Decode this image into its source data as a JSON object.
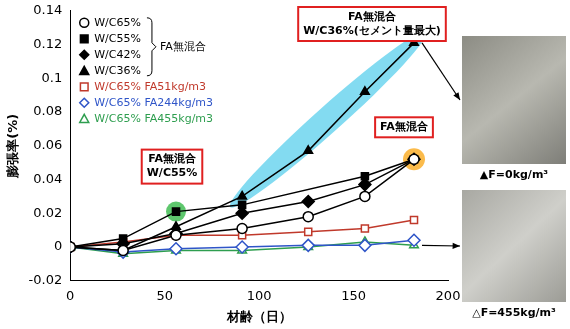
{
  "chart_data": {
    "type": "line",
    "x_label": "材齢（日）",
    "y_label": "膨張率(%)",
    "x": [
      0,
      28,
      56,
      91,
      126,
      156,
      182
    ],
    "series": [
      {
        "name": "W/C65%",
        "color": "#000000",
        "marker": "circle_open",
        "values": [
          0,
          -0.002,
          0.007,
          0.011,
          0.018,
          0.03,
          0.052
        ]
      },
      {
        "name": "W/C55%",
        "color": "#000000",
        "marker": "square",
        "values": [
          0,
          0.005,
          0.021,
          0.025,
          null,
          0.042,
          0.052
        ]
      },
      {
        "name": "W/C42%",
        "color": "#000000",
        "marker": "diamond",
        "values": [
          0,
          0.002,
          0.008,
          0.02,
          0.027,
          0.037,
          0.052
        ]
      },
      {
        "name": "W/C36%",
        "color": "#000000",
        "marker": "triangle",
        "values": [
          0,
          -0.002,
          0.012,
          0.03,
          0.057,
          0.092,
          0.121
        ]
      },
      {
        "name": "W/C65% FA51kg/m3",
        "color": "#c0392b",
        "marker": "square_open",
        "values": [
          0,
          0.003,
          0.007,
          0.007,
          0.009,
          0.011,
          0.016
        ]
      },
      {
        "name": "W/C65% FA244kg/m3",
        "color": "#2f55c8",
        "marker": "diamond_open",
        "values": [
          0,
          -0.003,
          -0.001,
          0.0,
          0.001,
          0.001,
          0.004
        ]
      },
      {
        "name": "W/C65% FA455kg/m3",
        "color": "#2e9e4f",
        "marker": "triangle_open",
        "values": [
          0,
          -0.004,
          -0.002,
          -0.002,
          0.0,
          0.003,
          0.001
        ]
      }
    ],
    "xlim": [
      0,
      200
    ],
    "xticks": [
      0,
      50,
      100,
      150,
      200
    ],
    "ylim": [
      -0.02,
      0.14
    ],
    "yticks": [
      -0.02,
      0,
      0.02,
      0.04,
      0.06,
      0.08,
      0.1,
      0.12,
      0.14
    ],
    "grid": false,
    "legend": "upper left",
    "line_style": "solid",
    "legend_group_label": "FA無混合",
    "annotations": [
      [
        "FA無混合",
        "W/C36%(セメント量最大)"
      ],
      [
        "FA無混合",
        "W/C55%"
      ],
      [
        "FA無混合"
      ]
    ],
    "images": [
      {
        "caption": "▲F=0kg/m³"
      },
      {
        "caption": "△F=455kg/m³"
      }
    ]
  }
}
